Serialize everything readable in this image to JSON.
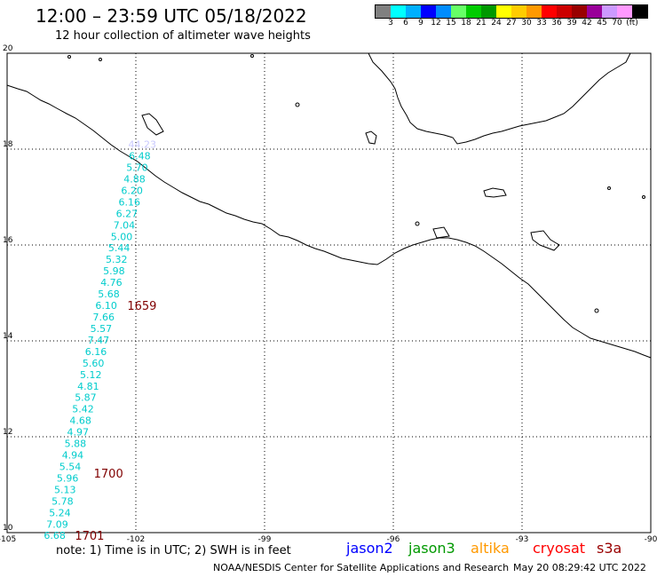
{
  "header": {
    "title": "12:00 – 23:59 UTC 05/18/2022",
    "subtitle": "12 hour collection of altimeter wave heights"
  },
  "colorbar": {
    "colors": [
      "#808080",
      "#00ffff",
      "#00b0ff",
      "#0000ff",
      "#008cff",
      "#66ff66",
      "#00cc00",
      "#009900",
      "#ffff00",
      "#ffcc00",
      "#ff9900",
      "#ff0000",
      "#cc0000",
      "#990000",
      "#990099",
      "#cc99ff",
      "#ff99ff",
      "#000000"
    ],
    "labels": [
      "3",
      "6",
      "9",
      "12",
      "15",
      "18",
      "21",
      "24",
      "27",
      "30",
      "33",
      "36",
      "39",
      "42",
      "45",
      "70",
      "(ft)"
    ]
  },
  "axes": {
    "lon_ticks": [
      "-105",
      "-102",
      "-99",
      "-96",
      "-93",
      "-90"
    ],
    "lat_ticks": [
      "10",
      "12",
      "14",
      "16",
      "18",
      "20"
    ]
  },
  "track": {
    "points": [
      {
        "lat": 18.1,
        "lon": -101.85,
        "value": "44.23",
        "color": "#c8c8ff"
      },
      {
        "lat": 17.86,
        "lon": -101.91,
        "value": "6.48",
        "color": "#00cccc"
      },
      {
        "lat": 17.62,
        "lon": -101.97,
        "value": "5.70",
        "color": "#00cccc"
      },
      {
        "lat": 17.38,
        "lon": -102.03,
        "value": "4.88",
        "color": "#00cccc"
      },
      {
        "lat": 17.14,
        "lon": -102.09,
        "value": "6.20",
        "color": "#00cccc"
      },
      {
        "lat": 16.9,
        "lon": -102.15,
        "value": "6.16",
        "color": "#00cccc"
      },
      {
        "lat": 16.66,
        "lon": -102.21,
        "value": "6.27",
        "color": "#00cccc"
      },
      {
        "lat": 16.42,
        "lon": -102.27,
        "value": "7.04",
        "color": "#00cccc"
      },
      {
        "lat": 16.18,
        "lon": -102.33,
        "value": "5.00",
        "color": "#00cccc"
      },
      {
        "lat": 15.94,
        "lon": -102.39,
        "value": "5.44",
        "color": "#00cccc"
      },
      {
        "lat": 15.7,
        "lon": -102.45,
        "value": "5.32",
        "color": "#00cccc"
      },
      {
        "lat": 15.46,
        "lon": -102.51,
        "value": "5.98",
        "color": "#00cccc"
      },
      {
        "lat": 15.22,
        "lon": -102.57,
        "value": "4.76",
        "color": "#00cccc"
      },
      {
        "lat": 14.98,
        "lon": -102.63,
        "value": "5.68",
        "color": "#00cccc"
      },
      {
        "lat": 14.74,
        "lon": -102.69,
        "value": "6.10",
        "color": "#00cccc"
      },
      {
        "lat": 14.5,
        "lon": -102.75,
        "value": "7.66",
        "color": "#00cccc"
      },
      {
        "lat": 14.26,
        "lon": -102.81,
        "value": "5.57",
        "color": "#00cccc"
      },
      {
        "lat": 14.02,
        "lon": -102.87,
        "value": "7.47",
        "color": "#00cccc"
      },
      {
        "lat": 13.78,
        "lon": -102.93,
        "value": "6.16",
        "color": "#00cccc"
      },
      {
        "lat": 13.54,
        "lon": -102.99,
        "value": "5.60",
        "color": "#00cccc"
      },
      {
        "lat": 13.3,
        "lon": -103.05,
        "value": "5.12",
        "color": "#00cccc"
      },
      {
        "lat": 13.06,
        "lon": -103.11,
        "value": "4.81",
        "color": "#00cccc"
      },
      {
        "lat": 12.82,
        "lon": -103.17,
        "value": "5.87",
        "color": "#00cccc"
      },
      {
        "lat": 12.58,
        "lon": -103.23,
        "value": "5.42",
        "color": "#00cccc"
      },
      {
        "lat": 12.34,
        "lon": -103.29,
        "value": "4.68",
        "color": "#00cccc"
      },
      {
        "lat": 12.1,
        "lon": -103.35,
        "value": "4.97",
        "color": "#00cccc"
      },
      {
        "lat": 11.86,
        "lon": -103.41,
        "value": "5.88",
        "color": "#00cccc"
      },
      {
        "lat": 11.62,
        "lon": -103.47,
        "value": "4.94",
        "color": "#00cccc"
      },
      {
        "lat": 11.38,
        "lon": -103.53,
        "value": "5.54",
        "color": "#00cccc"
      },
      {
        "lat": 11.14,
        "lon": -103.59,
        "value": "5.96",
        "color": "#00cccc"
      },
      {
        "lat": 10.9,
        "lon": -103.65,
        "value": "5.13",
        "color": "#00cccc"
      },
      {
        "lat": 10.66,
        "lon": -103.71,
        "value": "5.78",
        "color": "#00cccc"
      },
      {
        "lat": 10.42,
        "lon": -103.77,
        "value": "5.24",
        "color": "#00cccc"
      },
      {
        "lat": 10.18,
        "lon": -103.83,
        "value": "7.09",
        "color": "#00cccc"
      },
      {
        "lat": 9.94,
        "lon": -103.89,
        "value": "6.68",
        "color": "#00cccc"
      }
    ],
    "time_labels": [
      {
        "lat": 14.74,
        "lon": -102.2,
        "text": "1659"
      },
      {
        "lat": 11.24,
        "lon": -102.98,
        "text": "1700"
      },
      {
        "lat": 9.94,
        "lon": -103.42,
        "text": "1701"
      }
    ],
    "time_color": "#800000"
  },
  "footer": {
    "note": "note: 1) Time is in UTC; 2) SWH is in feet",
    "satellites": [
      {
        "name": "jason2",
        "color": "#0000ff"
      },
      {
        "name": "jason3",
        "color": "#009900"
      },
      {
        "name": "altika",
        "color": "#ff9900"
      },
      {
        "name": "cryosat",
        "color": "#ff0000"
      },
      {
        "name": "s3a",
        "color": "#990000"
      }
    ],
    "credit": "NOAA/NESDIS Center for Satellite Applications and Research",
    "timestamp": "May 20 08:29:42 UTC 2022"
  }
}
